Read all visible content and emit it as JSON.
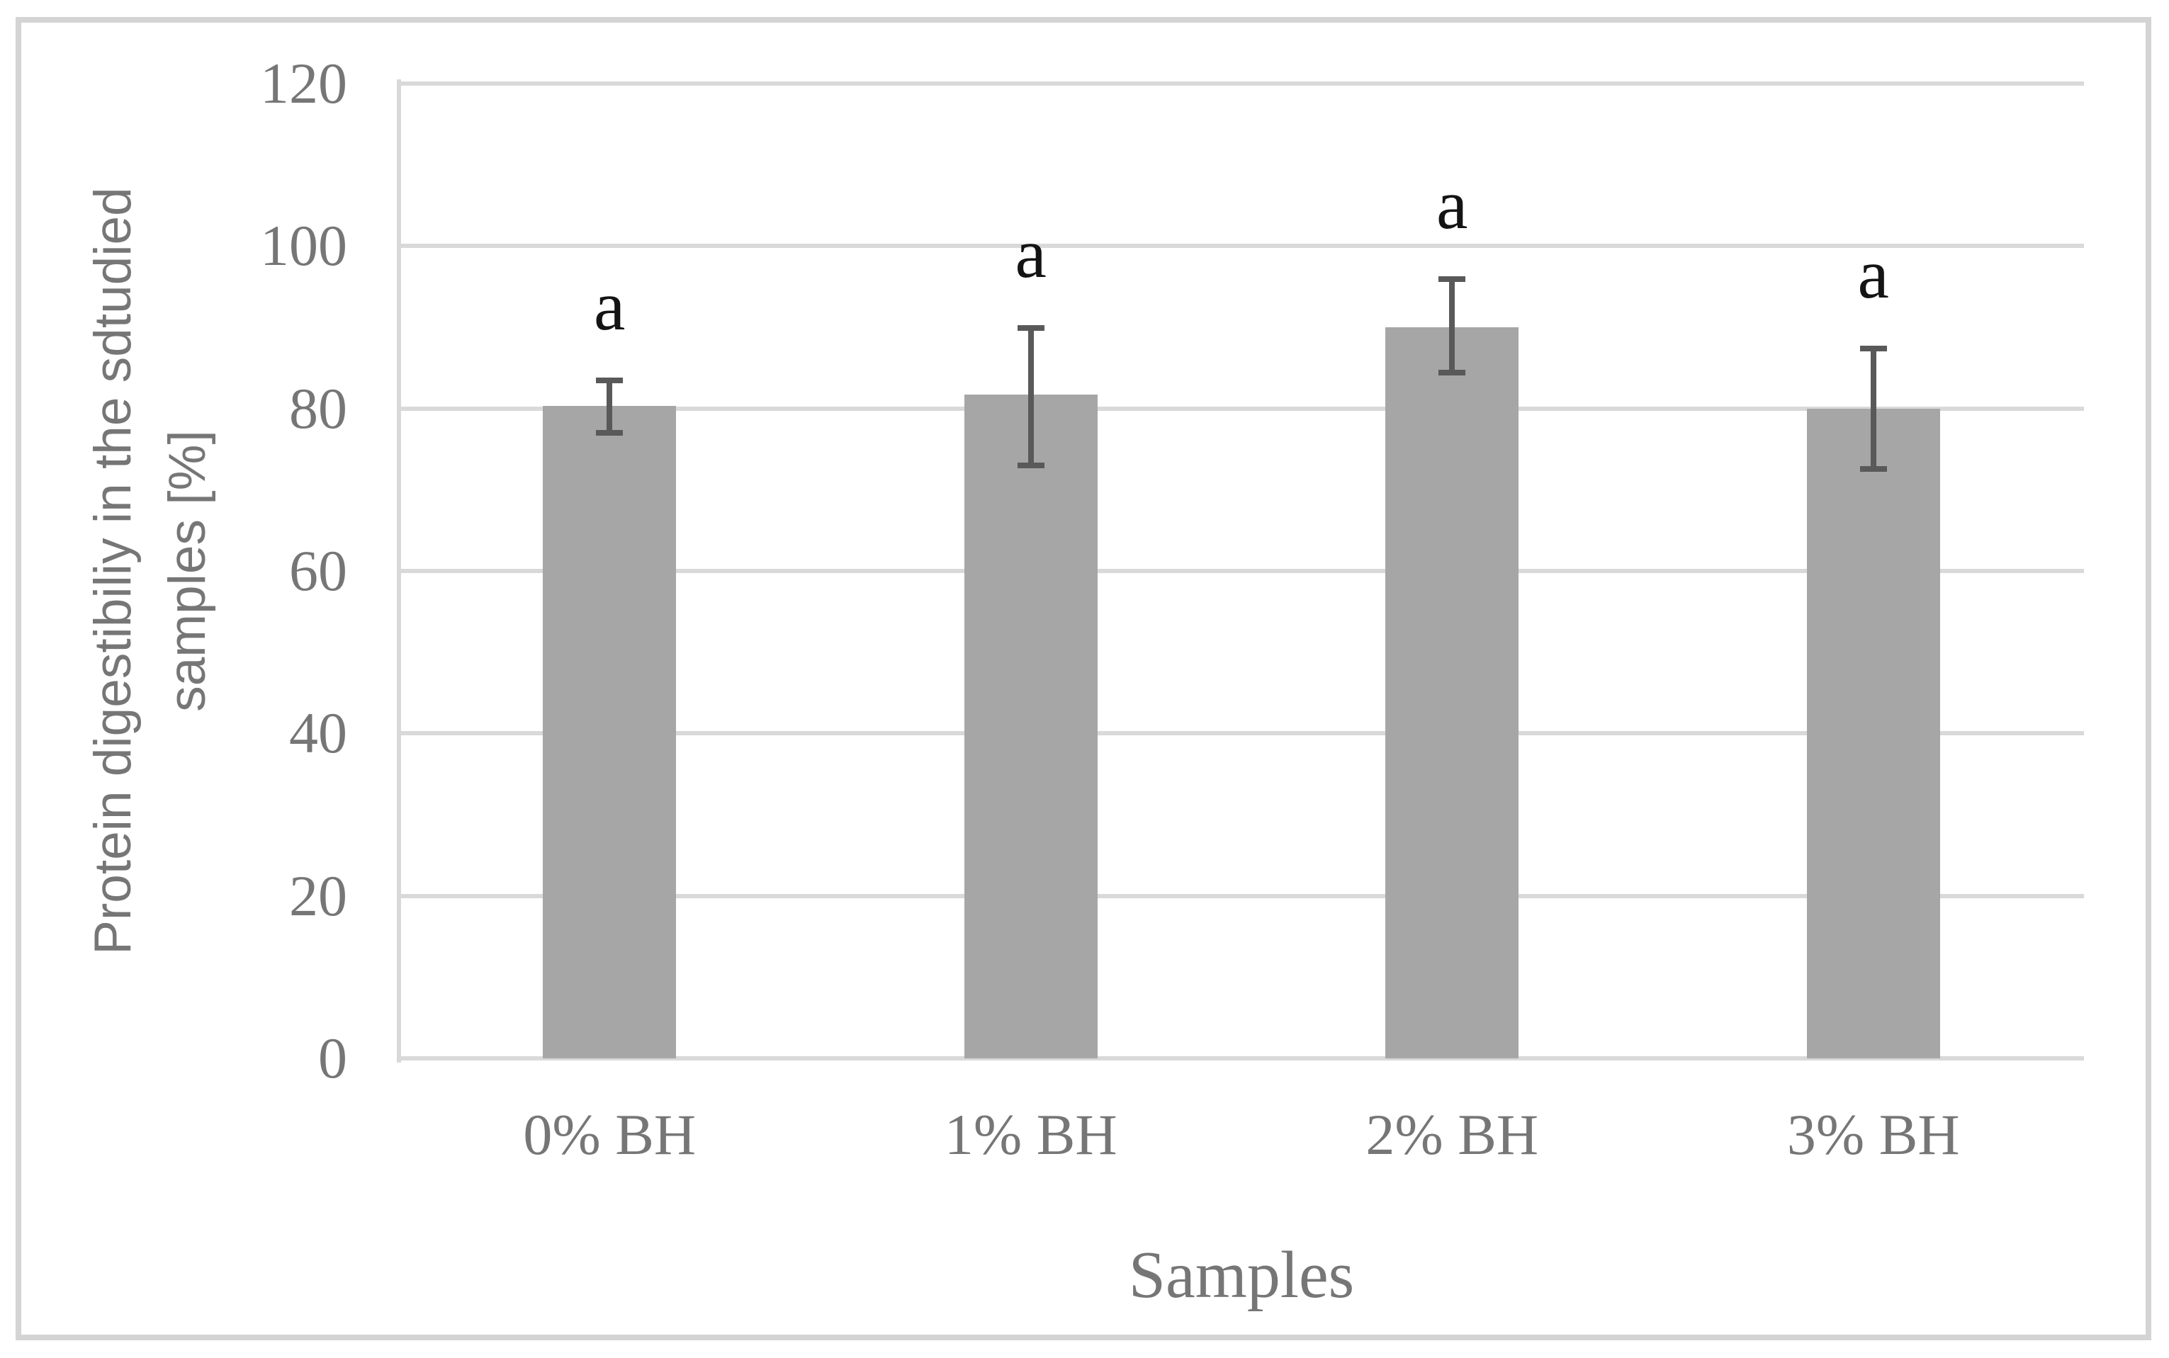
{
  "figure": {
    "background_color": "#ffffff",
    "frame_border_color": "#d4d4d4"
  },
  "chart_data": {
    "type": "bar",
    "title": "",
    "categories": [
      "0% BH",
      "1% BH",
      "2% BH",
      "3% BH"
    ],
    "values": [
      80.3,
      81.7,
      90.0,
      80.0
    ],
    "error_plus": [
      3.2,
      8.2,
      5.9,
      7.4
    ],
    "error_minus": [
      3.3,
      8.7,
      5.6,
      7.4
    ],
    "bar_letter_labels": [
      "a",
      "a",
      "a",
      "a"
    ],
    "xlabel": "Samples",
    "ylabel_line1": "Protein digestibiliy in the sdtudied",
    "ylabel_line2": "samples [%]",
    "ylim": [
      0,
      120
    ],
    "yticks": [
      0,
      20,
      40,
      60,
      80,
      100,
      120
    ],
    "grid": "horizontal gridlines on, legend off",
    "colors": {
      "bar_fill": "#a6a6a6",
      "gridline": "#d9d9d9",
      "axis_line": "#d9d9d9",
      "error_bar": "#595959",
      "tick_label": "#767676",
      "axis_title": "#767676",
      "letter_label": "#141414"
    }
  }
}
